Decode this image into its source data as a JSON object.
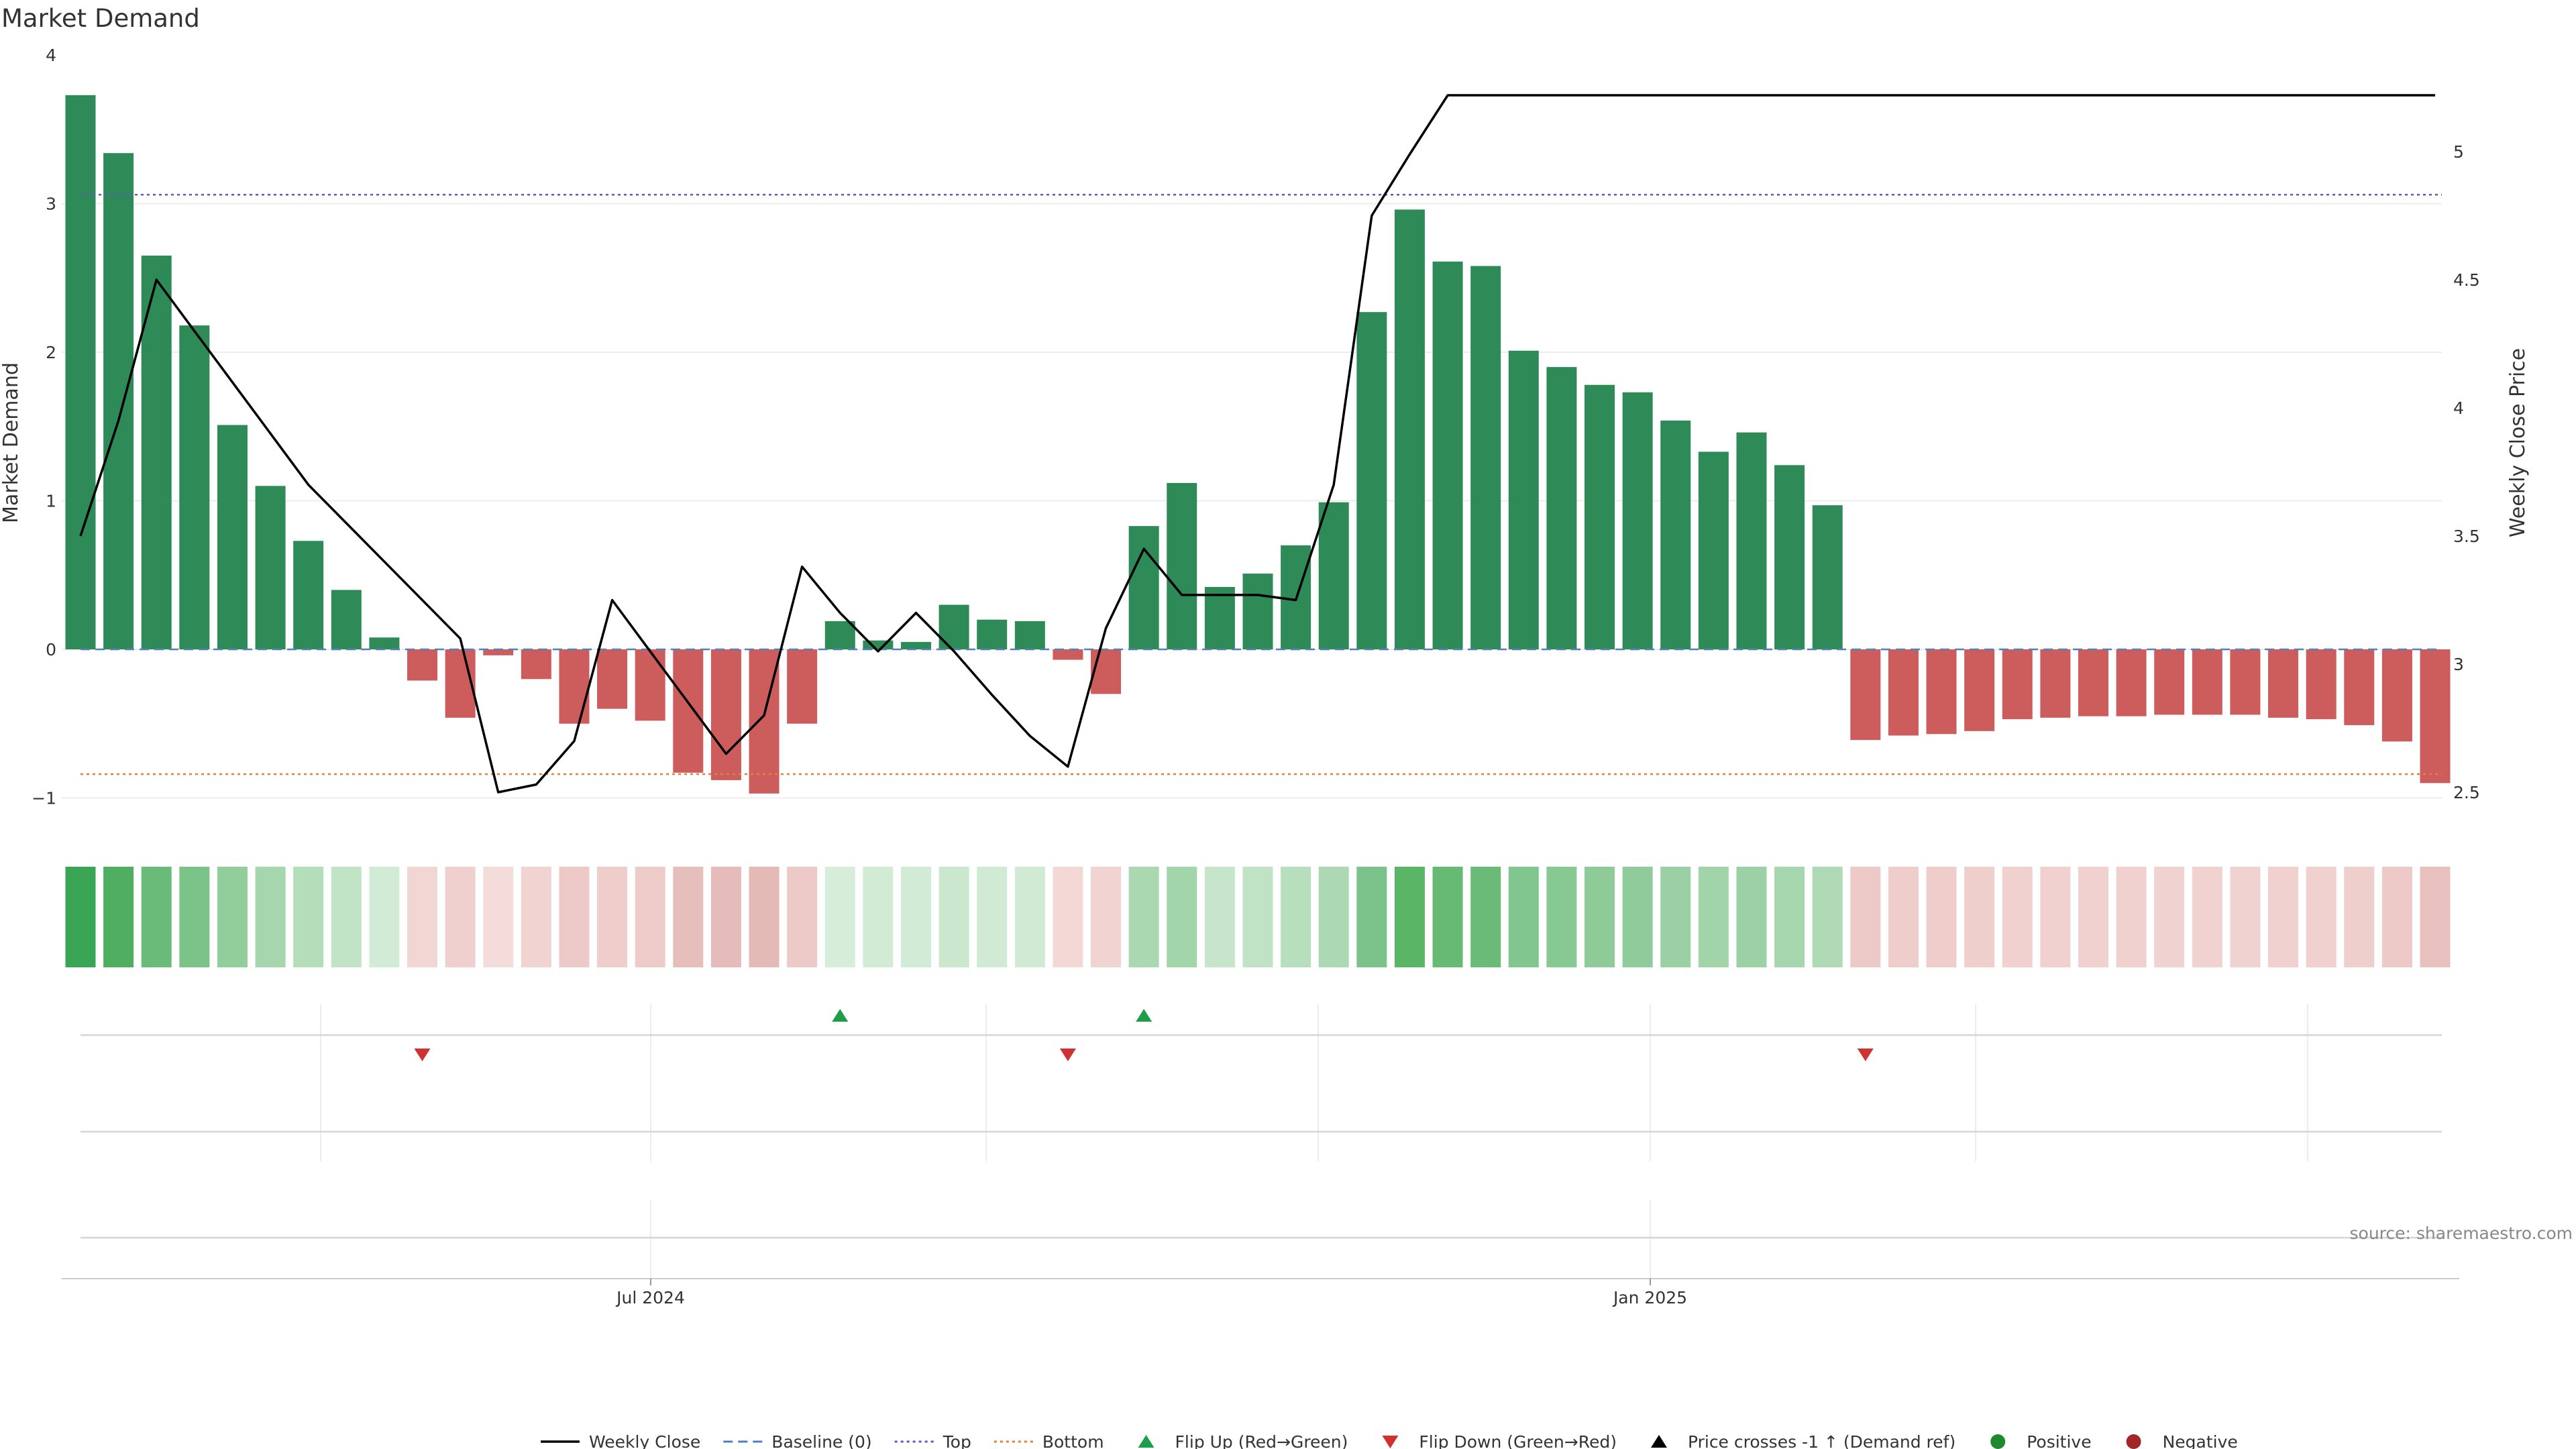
{
  "chart_data": {
    "type": "bar",
    "title": "Market Demand",
    "ylabel": "Market Demand",
    "y2label": "Weekly Close Price",
    "ylim": [
      -1.25,
      4
    ],
    "y2lim": [
      2.45,
      5.3
    ],
    "yticks": [
      "−1",
      "0",
      "1",
      "2",
      "3",
      "4"
    ],
    "y2ticks": [
      "2.5",
      "3",
      "3.5",
      "4",
      "4.5",
      "5"
    ],
    "xticks": [
      "Jul 2024",
      "Jan 2025"
    ],
    "top_line": 3.06,
    "bottom_line": -0.84,
    "demand_values": [
      3.73,
      3.34,
      2.65,
      2.18,
      1.51,
      1.1,
      0.73,
      0.4,
      0.08,
      -0.21,
      -0.46,
      -0.04,
      -0.2,
      -0.5,
      -0.4,
      -0.48,
      -0.83,
      -0.88,
      -0.97,
      -0.5,
      0.19,
      0.06,
      0.05,
      0.3,
      0.2,
      0.19,
      -0.07,
      -0.3,
      0.83,
      1.12,
      0.42,
      0.51,
      0.7,
      0.99,
      2.27,
      2.96,
      2.61,
      2.58,
      2.01,
      1.9,
      1.78,
      1.73,
      1.54,
      1.33,
      1.46,
      1.24,
      0.97,
      -0.61,
      -0.58,
      -0.57,
      -0.55,
      -0.47,
      -0.46,
      -0.45,
      -0.45,
      -0.44,
      -0.44,
      -0.44,
      -0.46,
      -0.47,
      -0.51,
      -0.62,
      -0.9
    ],
    "price_series": {
      "name": "Weekly Close",
      "points": [
        [
          0,
          3.5
        ],
        [
          1,
          3.95
        ],
        [
          2,
          4.5
        ],
        [
          3,
          4.3
        ],
        [
          4,
          4.1
        ],
        [
          5,
          3.9
        ],
        [
          6,
          3.7
        ],
        [
          7,
          3.55
        ],
        [
          8,
          3.4
        ],
        [
          9,
          3.25
        ],
        [
          10,
          3.1
        ],
        [
          11,
          2.5
        ],
        [
          12,
          2.53
        ],
        [
          13,
          2.7
        ],
        [
          14,
          3.25
        ],
        [
          15,
          3.05
        ],
        [
          16,
          2.85
        ],
        [
          17,
          2.65
        ],
        [
          18,
          2.8
        ],
        [
          19,
          3.38
        ],
        [
          20,
          3.2
        ],
        [
          21,
          3.05
        ],
        [
          22,
          3.2
        ],
        [
          23,
          3.05
        ],
        [
          24,
          2.88
        ],
        [
          25,
          2.72
        ],
        [
          26,
          2.6
        ],
        [
          27,
          3.14
        ],
        [
          28,
          3.45
        ],
        [
          29,
          3.27
        ],
        [
          30,
          3.27
        ],
        [
          31,
          3.27
        ],
        [
          32,
          3.25
        ],
        [
          33,
          3.7
        ],
        [
          34,
          4.75
        ],
        [
          35,
          4.99
        ],
        [
          36,
          5.22
        ],
        [
          62,
          5.22
        ]
      ]
    },
    "flip_up_indices": [
      20,
      28
    ],
    "flip_down_indices": [
      9,
      26,
      47
    ],
    "strip_colors": [
      "#3aa655",
      "#4fae60",
      "#6abb79",
      "#7cc38a",
      "#92cd9c",
      "#a5d6ad",
      "#b4ddba",
      "#c1e3c6",
      "#d2ebd6",
      "#f2d6d4",
      "#f0d0ce",
      "#f4dcdb",
      "#f1d4d2",
      "#edcac8",
      "#eecdca",
      "#eccbc8",
      "#e6bebb",
      "#e5bcb9",
      "#e4bab7",
      "#edcac7",
      "#d6eed9",
      "#d2ebd5",
      "#d2ebd6",
      "#cbe8cf",
      "#d0ead3",
      "#d0ead3",
      "#f3d8d6",
      "#f1d3d1",
      "#aad8b1",
      "#a3d5aa",
      "#c6e5ca",
      "#c1e3c5",
      "#b8dfbd",
      "#acd9b3",
      "#7cc38b",
      "#5ab566",
      "#66ba74",
      "#6abb77",
      "#82c68f",
      "#87c893",
      "#8ecb99",
      "#90cb9b",
      "#9ad0a3",
      "#a2d4aa",
      "#9cd1a5",
      "#a6d6ad",
      "#afdab5",
      "#edcac8",
      "#eecdca",
      "#eecdcb",
      "#eecfcc",
      "#f0d1cf",
      "#f0d1cf",
      "#f0d1cf",
      "#f0d1cf",
      "#f0d2d0",
      "#f0d2d0",
      "#f0d2d0",
      "#f0d1cf",
      "#f0d1cf",
      "#efcfcc",
      "#edcac7",
      "#e8c1be"
    ],
    "legend": [
      {
        "label": "Weekly Close",
        "marker": "line",
        "color": "#000000"
      },
      {
        "label": "Baseline (0)",
        "marker": "dash",
        "color": "#4f81bd"
      },
      {
        "label": "Top",
        "marker": "dot",
        "color": "#5a5ac8"
      },
      {
        "label": "Bottom",
        "marker": "dot",
        "color": "#e0803a"
      },
      {
        "label": "Flip Up (Red→Green)",
        "marker": "tri-up",
        "color": "#1e9e4a"
      },
      {
        "label": "Flip Down (Green→Red)",
        "marker": "tri-down",
        "color": "#d03232"
      },
      {
        "label": "Price crosses -1 ↑ (Demand ref)",
        "marker": "tri-up",
        "color": "#000000"
      },
      {
        "label": "Positive",
        "marker": "circle",
        "color": "#1e8a2e"
      },
      {
        "label": "Negative",
        "marker": "circle",
        "color": "#a02828"
      }
    ],
    "source": "source: sharemaestro.com",
    "colors": {
      "positive_bar": "#2e8b57",
      "negative_bar": "#cd5c5c",
      "flip_up": "#1e9e4a",
      "flip_down": "#d03232"
    }
  }
}
